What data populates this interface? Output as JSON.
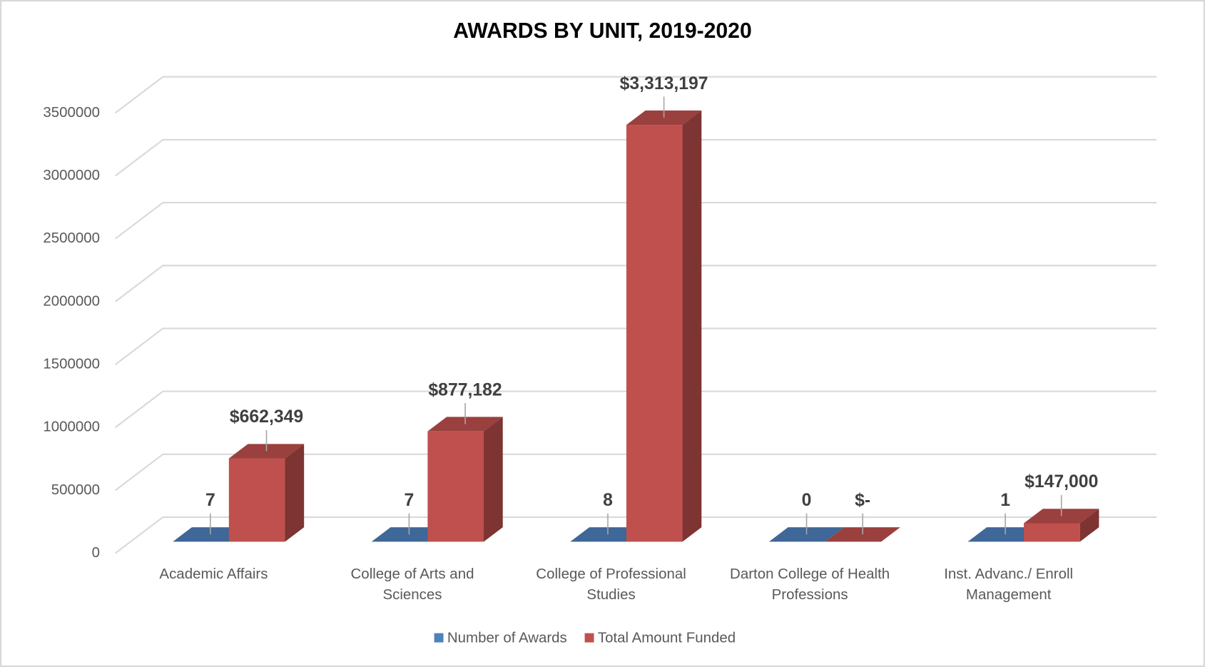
{
  "chart_data": {
    "type": "bar3d",
    "title": "AWARDS BY UNIT, 2019-2020",
    "categories": [
      "Academic Affairs",
      "College of Arts and Sciences",
      "College of Professional Studies",
      "Darton College of Health Professions",
      "Inst. Advanc./ Enroll Management"
    ],
    "series": [
      {
        "name": "Number of Awards",
        "color": "#4f81bd",
        "values": [
          7,
          7,
          8,
          0,
          1
        ]
      },
      {
        "name": "Total Amount Funded",
        "color": "#c0504d",
        "values": [
          662349,
          877182,
          3313197,
          0,
          147000
        ],
        "value_labels": [
          "$662,349",
          "$877,182",
          "$3,313,197",
          "$-",
          "$147,000"
        ]
      }
    ],
    "ylim": [
      0,
      3500000
    ],
    "yticks": [
      0,
      500000,
      1000000,
      1500000,
      2000000,
      2500000,
      3000000,
      3500000
    ],
    "grid": true,
    "legend": "bottom"
  }
}
